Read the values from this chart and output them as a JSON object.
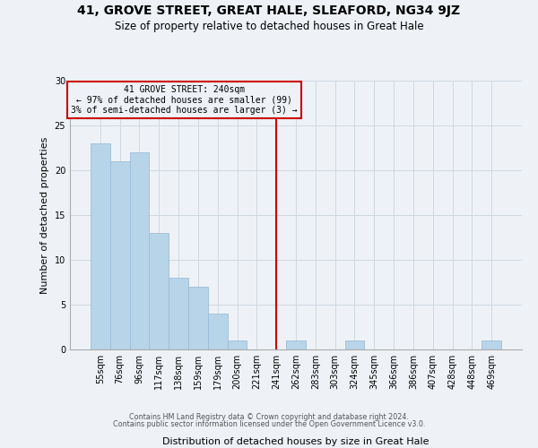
{
  "title": "41, GROVE STREET, GREAT HALE, SLEAFORD, NG34 9JZ",
  "subtitle": "Size of property relative to detached houses in Great Hale",
  "xlabel": "Distribution of detached houses by size in Great Hale",
  "ylabel": "Number of detached properties",
  "bar_labels": [
    "55sqm",
    "76sqm",
    "96sqm",
    "117sqm",
    "138sqm",
    "159sqm",
    "179sqm",
    "200sqm",
    "221sqm",
    "241sqm",
    "262sqm",
    "283sqm",
    "303sqm",
    "324sqm",
    "345sqm",
    "366sqm",
    "386sqm",
    "407sqm",
    "428sqm",
    "448sqm",
    "469sqm"
  ],
  "bar_heights": [
    23,
    21,
    22,
    13,
    8,
    7,
    4,
    1,
    0,
    0,
    1,
    0,
    0,
    1,
    0,
    0,
    0,
    0,
    0,
    0,
    1
  ],
  "bar_color": "#b8d4e8",
  "bar_edge_color": "#9dbdd8",
  "vline_x_index": 9,
  "vline_color": "#cc0000",
  "annotation_title": "41 GROVE STREET: 240sqm",
  "annotation_line1": "← 97% of detached houses are smaller (99)",
  "annotation_line2": "3% of semi-detached houses are larger (3) →",
  "annotation_box_edgecolor": "#cc0000",
  "ylim": [
    0,
    30
  ],
  "yticks": [
    0,
    5,
    10,
    15,
    20,
    25,
    30
  ],
  "grid_color": "#d0d8e0",
  "bg_color": "#eef2f7",
  "footer1": "Contains HM Land Registry data © Crown copyright and database right 2024.",
  "footer2": "Contains public sector information licensed under the Open Government Licence v3.0."
}
